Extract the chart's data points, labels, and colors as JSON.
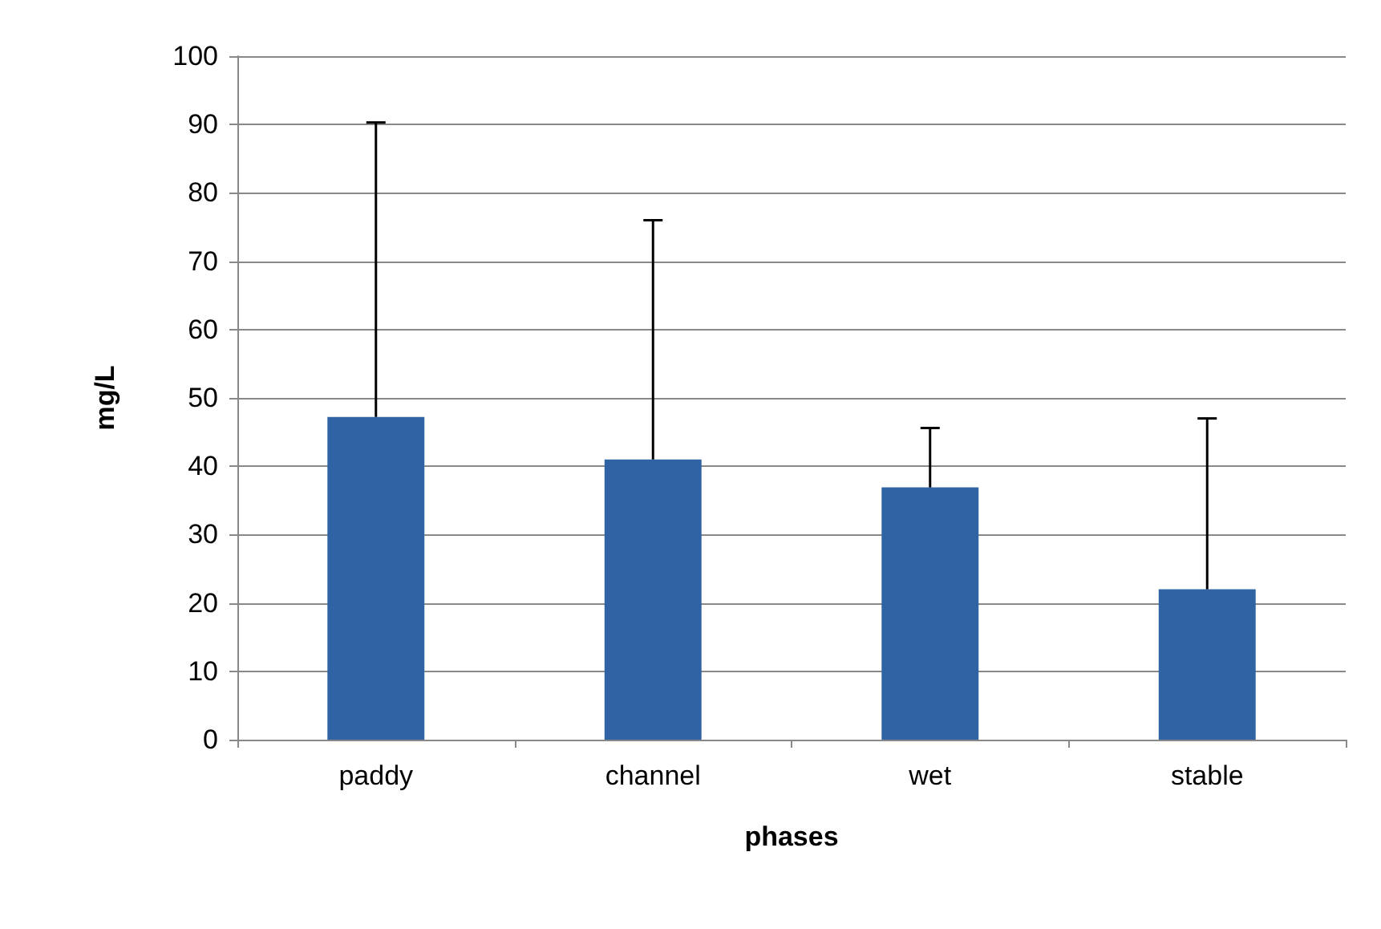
{
  "chart_data": {
    "type": "bar",
    "xlabel": "phases",
    "ylabel": "mg/L",
    "categories": [
      "paddy",
      "channel",
      "wet",
      "stable"
    ],
    "values": [
      47.2,
      41.0,
      36.9,
      22.0
    ],
    "errors": [
      [
        47.2,
        90.3
      ],
      [
        41.0,
        76.0
      ],
      [
        36.9,
        45.6
      ],
      [
        22.0,
        47.0
      ]
    ],
    "color": "#2f63a3",
    "ylim": [
      0,
      100
    ],
    "yticks": [
      0,
      10,
      20,
      30,
      40,
      50,
      60,
      70,
      80,
      90,
      100
    ],
    "grid": "y"
  }
}
